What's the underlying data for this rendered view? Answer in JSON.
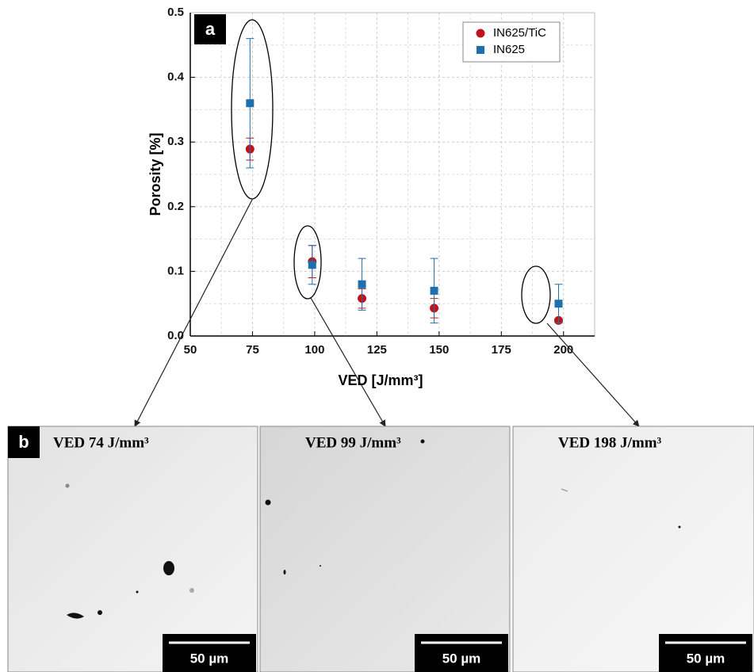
{
  "chart_data": {
    "type": "scatter",
    "panel_label": "a",
    "x_label": "VED [J/mm³]",
    "y_label": "Porosity [%]",
    "x": [
      74,
      99,
      119,
      148,
      198
    ],
    "series": [
      {
        "name": "IN625/TiC",
        "color": "#c0141c",
        "marker": "circle",
        "values": [
          0.289,
          0.115,
          0.058,
          0.043,
          0.024
        ],
        "errors": [
          0.017,
          0.025,
          0.015,
          0.015,
          0.003
        ]
      },
      {
        "name": "IN625",
        "color": "#1f6fae",
        "marker": "square",
        "values": [
          0.36,
          0.11,
          0.08,
          0.07,
          0.05
        ],
        "errors": [
          0.1,
          0.03,
          0.04,
          0.05,
          0.03
        ]
      }
    ],
    "xlim": [
      50,
      212.5
    ],
    "ylim": [
      0,
      0.5
    ],
    "xticks": [
      50,
      75,
      100,
      125,
      150,
      175,
      200
    ],
    "yticks": [
      {
        "value": 0,
        "label": "0.0"
      },
      0.1,
      0.2,
      0.3,
      0.4,
      0.5
    ],
    "grid": true,
    "legend": "upper right"
  },
  "panel_b": {
    "label": "b",
    "micrographs": [
      {
        "title": "VED 74 J/mm³",
        "scale": "50 µm"
      },
      {
        "title": "VED 99 J/mm³",
        "scale": "50 µm"
      },
      {
        "title": "VED 198 J/mm³",
        "scale": "50 µm"
      }
    ]
  }
}
